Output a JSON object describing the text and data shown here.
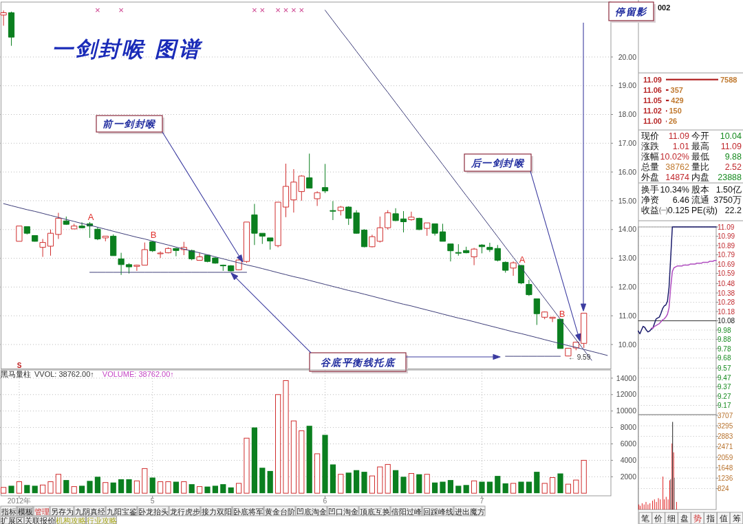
{
  "chart_data": [
    {
      "type": "candlestick",
      "title": "一剑封喉 图谱",
      "categories": [
        null,
        null,
        null,
        null,
        null,
        null,
        null,
        null,
        null,
        null,
        null,
        null,
        null,
        null,
        null,
        null,
        null,
        null,
        null,
        null,
        null,
        null,
        null,
        null,
        null,
        null,
        null,
        null,
        null,
        null,
        null,
        null,
        null,
        null,
        null,
        null,
        null,
        null,
        null,
        null,
        null,
        null,
        null,
        null,
        null,
        null,
        null,
        null,
        null,
        null,
        null,
        null,
        null,
        null,
        null,
        null,
        null,
        null,
        null,
        null,
        null,
        null,
        null,
        null,
        null,
        null,
        null,
        null,
        null,
        null,
        null,
        null,
        null,
        null,
        null,
        null,
        null,
        null
      ],
      "ohlc": [
        [
          21.46,
          21.62,
          21.09,
          21.54
        ],
        [
          21.54,
          21.58,
          20.39,
          20.69
        ],
        [
          13.59,
          14.12,
          13.59,
          14.12
        ],
        [
          14.1,
          14.1,
          13.83,
          13.87
        ],
        [
          13.79,
          13.79,
          13.58,
          13.59
        ],
        [
          13.38,
          13.67,
          13.05,
          13.55
        ],
        [
          13.42,
          14.0,
          13.09,
          13.87
        ],
        [
          13.83,
          14.58,
          13.67,
          14.39
        ],
        [
          14.3,
          14.45,
          14.16,
          14.18
        ],
        [
          14.02,
          14.2,
          14.02,
          14.12
        ],
        [
          14.12,
          14.25,
          14.04,
          14.06
        ],
        [
          14.2,
          14.26,
          13.71,
          14.12
        ],
        [
          14.01,
          14.08,
          13.63,
          13.67
        ],
        [
          13.71,
          13.77,
          13.59,
          13.77
        ],
        [
          13.77,
          13.83,
          13.09,
          13.09
        ],
        [
          12.98,
          13.19,
          12.42,
          12.78
        ],
        [
          12.78,
          12.83,
          12.47,
          12.7
        ],
        [
          12.72,
          12.78,
          12.56,
          12.76
        ],
        [
          12.76,
          13.55,
          12.76,
          13.3
        ],
        [
          13.57,
          13.6,
          13.22,
          13.26
        ],
        [
          13.17,
          13.24,
          13.01,
          13.18
        ],
        [
          13.19,
          13.38,
          13.17,
          13.34
        ],
        [
          13.34,
          13.36,
          13.07,
          13.27
        ],
        [
          13.3,
          13.57,
          13.11,
          13.38
        ],
        [
          13.27,
          13.3,
          12.93,
          12.98
        ],
        [
          12.93,
          13.19,
          12.93,
          13.05
        ],
        [
          13.11,
          13.13,
          12.86,
          12.89
        ],
        [
          13.01,
          13.03,
          12.81,
          12.83
        ],
        [
          12.76,
          12.78,
          12.56,
          12.75
        ],
        [
          12.74,
          12.76,
          12.54,
          12.56
        ],
        [
          12.6,
          12.97,
          12.58,
          12.94
        ],
        [
          12.89,
          14.26,
          12.84,
          14.26
        ],
        [
          14.51,
          14.89,
          13.46,
          13.87
        ],
        [
          13.87,
          13.87,
          13.5,
          13.77
        ],
        [
          13.71,
          13.71,
          13.3,
          13.6
        ],
        [
          13.44,
          14.95,
          13.38,
          14.95
        ],
        [
          14.78,
          16.29,
          14.43,
          15.5
        ],
        [
          15.03,
          16.1,
          14.59,
          15.65
        ],
        [
          15.32,
          15.89,
          15.0,
          15.86
        ],
        [
          15.8,
          16.64,
          15.44,
          15.44
        ],
        [
          15.07,
          15.33,
          14.82,
          15.28
        ],
        [
          15.46,
          16.28,
          15.27,
          15.34
        ],
        [
          14.66,
          14.99,
          14.33,
          14.65
        ],
        [
          14.66,
          14.82,
          14.49,
          14.78
        ],
        [
          14.78,
          14.81,
          14.16,
          14.39
        ],
        [
          14.58,
          14.67,
          13.85,
          13.87
        ],
        [
          13.98,
          14.01,
          13.38,
          13.4
        ],
        [
          13.4,
          13.82,
          13.38,
          13.75
        ],
        [
          13.59,
          14.45,
          13.55,
          14.06
        ],
        [
          14.06,
          14.67,
          14.0,
          14.58
        ],
        [
          14.55,
          14.74,
          14.29,
          14.31
        ],
        [
          14.37,
          14.64,
          13.9,
          14.27
        ],
        [
          14.34,
          14.62,
          14.31,
          14.43
        ],
        [
          14.39,
          14.41,
          13.98,
          14.0
        ],
        [
          14.04,
          14.23,
          13.78,
          14.23
        ],
        [
          14.2,
          14.2,
          13.79,
          13.87
        ],
        [
          13.92,
          14.2,
          13.59,
          13.59
        ],
        [
          13.5,
          13.5,
          12.89,
          13.26
        ],
        [
          13.2,
          13.49,
          13.09,
          13.19
        ],
        [
          13.27,
          13.4,
          13.17,
          13.19
        ],
        [
          13.05,
          13.36,
          12.76,
          13.32
        ],
        [
          13.46,
          13.49,
          13.17,
          13.4
        ],
        [
          13.38,
          13.54,
          13.22,
          13.3
        ],
        [
          13.34,
          13.46,
          12.89,
          12.93
        ],
        [
          12.86,
          12.89,
          12.5,
          12.58
        ],
        [
          12.66,
          12.89,
          12.39,
          12.84
        ],
        [
          12.75,
          12.76,
          12.1,
          12.14
        ],
        [
          12.09,
          12.25,
          11.69,
          11.73
        ],
        [
          11.59,
          11.59,
          10.68,
          11.07
        ],
        [
          10.95,
          11.15,
          10.88,
          11.13
        ],
        [
          10.91,
          10.96,
          10.78,
          10.95
        ],
        [
          10.88,
          10.88,
          9.86,
          9.86
        ],
        [
          9.6,
          9.88,
          9.59,
          9.87
        ],
        [
          9.88,
          10.1,
          9.8,
          10.08
        ],
        [
          10.04,
          11.09,
          9.88,
          11.09
        ],
        null,
        null,
        null
      ],
      "colors": [
        "#d02c2c",
        "#0b7f1f",
        "#d02c2c",
        "#0b7f1f",
        "#0b7f1f",
        "#d02c2c",
        "#d02c2c",
        "#d02c2c",
        "#0b7f1f",
        "#d02c2c",
        "#0b7f1f",
        "#0b7f1f",
        "#0b7f1f",
        "#d02c2c",
        "#0b7f1f",
        "#0b7f1f",
        "#0b7f1f",
        "#d02c2c",
        "#d02c2c",
        "#0b7f1f",
        "#d02c2c",
        "#d02c2c",
        "#0b7f1f",
        "#d02c2c",
        "#0b7f1f",
        "#d02c2c",
        "#0b7f1f",
        "#0b7f1f",
        "#0b7f1f",
        "#0b7f1f",
        "#d02c2c",
        "#d02c2c",
        "#0b7f1f",
        "#0b7f1f",
        "#0b7f1f",
        "#d02c2c",
        "#d02c2c",
        "#d02c2c",
        "#d02c2c",
        "#0b7f1f",
        "#d02c2c",
        "#0b7f1f",
        "#0b7f1f",
        "#d02c2c",
        "#0b7f1f",
        "#0b7f1f",
        "#0b7f1f",
        "#d02c2c",
        "#d02c2c",
        "#d02c2c",
        "#0b7f1f",
        "#0b7f1f",
        "#d02c2c",
        "#0b7f1f",
        "#d02c2c",
        "#0b7f1f",
        "#0b7f1f",
        "#0b7f1f",
        "#0b7f1f",
        "#0b7f1f",
        "#d02c2c",
        "#0b7f1f",
        "#0b7f1f",
        "#0b7f1f",
        "#0b7f1f",
        "#d02c2c",
        "#0b7f1f",
        "#0b7f1f",
        "#0b7f1f",
        "#d02c2c",
        "#d02c2c",
        "#0b7f1f",
        "#d02c2c",
        "#d02c2c",
        "#d02c2c",
        null,
        null,
        null
      ],
      "series": [
        {
          "type": "scatter",
          "color": "#d2559a",
          "marker": "cross",
          "values": [
            null,
            null,
            null,
            null,
            null,
            null,
            null,
            null,
            null,
            null,
            null,
            null,
            21.63,
            null,
            null,
            21.63,
            null,
            null,
            null,
            null,
            null,
            null,
            null,
            null,
            null,
            null,
            null,
            null,
            null,
            null,
            null,
            null,
            21.63,
            21.63,
            null,
            21.63,
            21.63,
            21.63,
            21.63,
            null,
            null,
            null,
            null,
            null,
            null,
            null,
            null,
            null,
            null,
            null,
            null,
            null,
            null,
            null,
            null,
            null,
            null,
            null,
            null,
            null,
            null,
            null,
            null,
            null,
            null,
            null,
            null,
            null,
            null,
            null,
            null,
            null,
            null,
            null,
            null,
            null,
            null,
            null
          ]
        },
        {
          "type": "line",
          "color": "#3c3c78",
          "values": [
            14.9,
            14.83,
            14.76,
            14.69,
            14.63,
            14.56,
            14.49,
            14.42,
            14.35,
            14.28,
            14.21,
            14.15,
            14.08,
            14.01,
            13.94,
            13.87,
            13.8,
            13.73,
            13.67,
            13.6,
            13.53,
            13.46,
            13.39,
            13.32,
            13.25,
            13.19,
            13.12,
            13.05,
            12.98,
            12.91,
            12.84,
            12.77,
            12.71,
            12.64,
            12.57,
            12.5,
            12.43,
            12.36,
            12.3,
            12.23,
            12.16,
            12.09,
            12.02,
            11.95,
            11.88,
            11.82,
            11.75,
            11.68,
            11.61,
            11.54,
            11.47,
            11.4,
            11.34,
            11.27,
            11.2,
            11.13,
            11.06,
            10.99,
            10.92,
            10.86,
            10.79,
            10.72,
            10.65,
            10.58,
            10.51,
            10.44,
            10.38,
            10.31,
            10.24,
            10.17,
            10.1,
            10.03,
            9.96,
            9.9,
            9.83,
            9.76,
            9.69,
            9.62
          ]
        },
        {
          "type": "line",
          "color": "#3c3c78",
          "values": [
            null,
            null,
            null,
            null,
            null,
            null,
            null,
            null,
            null,
            null,
            null,
            null,
            null,
            null,
            null,
            null,
            null,
            null,
            null,
            null,
            null,
            null,
            null,
            null,
            null,
            null,
            null,
            null,
            null,
            null,
            null,
            null,
            null,
            null,
            null,
            null,
            null,
            null,
            null,
            null,
            null,
            21.63,
            21.27,
            20.91,
            20.56,
            20.2,
            19.84,
            19.48,
            19.12,
            18.77,
            18.41,
            18.05,
            17.69,
            17.33,
            16.97,
            16.62,
            16.26,
            15.9,
            15.54,
            15.18,
            14.83,
            14.47,
            14.11,
            13.75,
            13.39,
            13.03,
            12.68,
            12.32,
            11.96,
            11.6,
            11.24,
            10.88,
            10.53,
            10.17,
            9.81,
            9.45,
            null,
            null
          ]
        },
        {
          "type": "line",
          "color": "#3c3c78",
          "values": [
            null,
            null,
            null,
            null,
            null,
            null,
            null,
            null,
            null,
            null,
            null,
            12.51,
            12.51,
            12.51,
            12.51,
            12.51,
            12.51,
            12.51,
            12.51,
            12.51,
            12.51,
            12.51,
            12.51,
            12.51,
            12.51,
            12.51,
            12.51,
            12.51,
            12.51,
            12.51,
            12.51,
            12.51,
            null,
            null,
            null,
            null,
            null,
            null,
            null,
            null,
            null,
            null,
            null,
            null,
            null,
            null,
            null,
            null,
            null,
            null,
            null,
            null,
            null,
            null,
            null,
            null,
            null,
            null,
            null,
            null,
            null,
            null,
            null,
            null,
            null,
            null,
            null,
            null,
            null,
            null,
            null,
            null,
            null,
            null,
            null,
            null,
            null,
            null
          ]
        },
        {
          "type": "line",
          "color": "#3c3c78",
          "values": [
            null,
            null,
            null,
            null,
            null,
            null,
            null,
            null,
            null,
            null,
            null,
            null,
            null,
            null,
            null,
            null,
            null,
            null,
            null,
            null,
            null,
            null,
            null,
            null,
            null,
            null,
            null,
            null,
            null,
            null,
            null,
            null,
            null,
            null,
            null,
            null,
            null,
            null,
            null,
            null,
            null,
            null,
            null,
            null,
            null,
            null,
            null,
            null,
            null,
            null,
            null,
            null,
            null,
            null,
            null,
            null,
            null,
            null,
            null,
            null,
            null,
            null,
            null,
            null,
            9.59,
            9.59,
            9.59,
            9.59,
            9.59,
            9.59,
            9.59,
            9.59,
            null,
            null,
            null,
            null,
            null,
            null
          ]
        }
      ],
      "annotations": [
        "前一剑封喉",
        "谷底平衡线托底",
        "后一剑封喉",
        "停留影",
        "A",
        "B",
        "A",
        "B",
        "← 9.59",
        "S"
      ],
      "ylim": [
        9.15,
        21.9
      ],
      "yticks": [
        {
          "value": 10,
          "label": "10.00"
        },
        {
          "value": 11,
          "label": "11.00"
        },
        {
          "value": 12,
          "label": "12.00"
        },
        {
          "value": 13,
          "label": "13.00"
        },
        {
          "value": 14,
          "label": "14.00"
        },
        {
          "value": 15,
          "label": "15.00"
        },
        {
          "value": 16,
          "label": "16.00"
        },
        {
          "value": 17,
          "label": "17.00"
        },
        {
          "value": 18,
          "label": "18.00"
        },
        {
          "value": 19,
          "label": "19.00"
        },
        {
          "value": 20,
          "label": "20.00"
        }
      ],
      "grid": "y"
    },
    {
      "type": "bar",
      "title": "黑马量柱",
      "annotations": [
        "VVOL: 38762.00↑",
        "VOLUME: 38762.00↑"
      ],
      "categories": [
        null,
        null,
        "2012年",
        null,
        null,
        null,
        null,
        null,
        null,
        null,
        null,
        null,
        null,
        null,
        null,
        null,
        null,
        null,
        null,
        "5",
        null,
        null,
        null,
        null,
        null,
        null,
        null,
        null,
        null,
        null,
        null,
        null,
        null,
        null,
        null,
        null,
        null,
        null,
        null,
        null,
        null,
        "6",
        null,
        null,
        null,
        null,
        null,
        null,
        null,
        null,
        null,
        null,
        null,
        null,
        null,
        null,
        null,
        null,
        null,
        null,
        null,
        "7",
        null,
        null,
        null,
        null,
        null,
        null,
        null,
        null,
        null,
        null,
        null,
        null,
        null,
        null,
        null,
        null
      ],
      "values": [
        700,
        900,
        1400,
        1000,
        900,
        1000,
        1400,
        2300,
        1600,
        800,
        900,
        1500,
        2000,
        1300,
        1300,
        1700,
        1700,
        1500,
        3000,
        1900,
        1400,
        1400,
        1400,
        1400,
        1100,
        800,
        800,
        900,
        1100,
        700,
        1200,
        6700,
        8000,
        3100,
        2700,
        12000,
        13700,
        8800,
        7600,
        8200,
        4800,
        7100,
        3500,
        2300,
        2500,
        2800,
        2600,
        2100,
        3200,
        3500,
        2800,
        2000,
        2400,
        2300,
        2300,
        1300,
        1400,
        1600,
        900,
        1000,
        1500,
        1400,
        1400,
        2100,
        1200,
        1200,
        1400,
        1400,
        2600,
        1200,
        1900,
        2400,
        1100,
        1600,
        4000,
        null,
        null,
        null
      ],
      "colors": [
        "#d02c2c",
        "#0b7f1f",
        "#d02c2c",
        "#0b7f1f",
        "#0b7f1f",
        "#d02c2c",
        "#d02c2c",
        "#d02c2c",
        "#0b7f1f",
        "#d02c2c",
        "#0b7f1f",
        "#0b7f1f",
        "#0b7f1f",
        "#d02c2c",
        "#0b7f1f",
        "#0b7f1f",
        "#0b7f1f",
        "#d02c2c",
        "#d02c2c",
        "#0b7f1f",
        "#d02c2c",
        "#d02c2c",
        "#0b7f1f",
        "#d02c2c",
        "#0b7f1f",
        "#d02c2c",
        "#0b7f1f",
        "#0b7f1f",
        "#0b7f1f",
        "#0b7f1f",
        "#d02c2c",
        "#d02c2c",
        "#0b7f1f",
        "#0b7f1f",
        "#0b7f1f",
        "#d02c2c",
        "#d02c2c",
        "#d02c2c",
        "#d02c2c",
        "#0b7f1f",
        "#d02c2c",
        "#0b7f1f",
        "#0b7f1f",
        "#d02c2c",
        "#0b7f1f",
        "#0b7f1f",
        "#0b7f1f",
        "#d02c2c",
        "#d02c2c",
        "#d02c2c",
        "#0b7f1f",
        "#0b7f1f",
        "#d02c2c",
        "#0b7f1f",
        "#d02c2c",
        "#0b7f1f",
        "#0b7f1f",
        "#0b7f1f",
        "#0b7f1f",
        "#0b7f1f",
        "#d02c2c",
        "#0b7f1f",
        "#0b7f1f",
        "#0b7f1f",
        "#0b7f1f",
        "#d02c2c",
        "#0b7f1f",
        "#0b7f1f",
        "#0b7f1f",
        "#d02c2c",
        "#d02c2c",
        "#0b7f1f",
        "#d02c2c",
        "#d02c2c",
        "#d02c2c",
        null,
        null,
        null
      ],
      "ylim": [
        0,
        15000
      ],
      "yticks": [
        2000,
        4000,
        6000,
        8000,
        10000,
        12000,
        14000
      ],
      "grid": true
    },
    {
      "type": "bar",
      "orientation": "horizontal",
      "categories": [
        "11.09",
        "11.06",
        "11.05",
        "11.02",
        "11.00"
      ],
      "values": [
        7588,
        357,
        429,
        150,
        26
      ],
      "color": "#b01e1e",
      "data_labels": true
    },
    {
      "type": "other",
      "title": "002",
      "annotations": [
        "现价",
        "11.09",
        "今开",
        "10.04",
        "涨跌",
        "1.01",
        "最高",
        "11.09",
        "涨幅",
        "10.02%",
        "最低",
        "9.88",
        "总量",
        "38762",
        "量比",
        "2.52",
        "外盘",
        "14874",
        "内盘",
        "23888",
        "换手",
        "10.34%",
        "股本",
        "1.50亿",
        "净资",
        "6.46",
        "流通",
        "3750万",
        "收益㈠",
        "0.125",
        "PE(动)",
        "22.2"
      ],
      "colors": [
        "#111111",
        "#c0282d",
        "#111111",
        "#158a1e",
        "#111111",
        "#c0282d",
        "#111111",
        "#c0282d",
        "#111111",
        "#c0282d",
        "#111111",
        "#158a1e",
        "#111111",
        "#c07a30",
        "#111111",
        "#c0282d",
        "#111111",
        "#c0282d",
        "#111111",
        "#158a1e",
        "#111111",
        "#111111",
        "#111111",
        "#111111",
        "#111111",
        "#111111",
        "#111111",
        "#111111",
        "#111111",
        "#111111",
        "#111111",
        "#111111"
      ]
    },
    {
      "type": "line",
      "categories": [
        null,
        null,
        null,
        null,
        null,
        null,
        null,
        null,
        null,
        null,
        null,
        null,
        null,
        null,
        null,
        null,
        null,
        null,
        null,
        null,
        null,
        null,
        null,
        null,
        null,
        null,
        null,
        null,
        null,
        null,
        null,
        null,
        null,
        null,
        null,
        null,
        null,
        null,
        null,
        null,
        null,
        null,
        null,
        null,
        null,
        null,
        null,
        null,
        null
      ],
      "series": [
        {
          "color": "#1c1c6c",
          "values": [
            9.97,
            9.94,
            9.98,
            10.02,
            10.01,
            9.98,
            9.96,
            9.97,
            9.99,
            10.0,
            10.05,
            10.1,
            10.11,
            10.12,
            10.16,
            10.21,
            10.24,
            10.25,
            10.29,
            10.44,
            10.76,
            11.09,
            11.09,
            11.09,
            11.09,
            11.09,
            11.09,
            11.09,
            11.09,
            11.09,
            11.09,
            11.09,
            11.09,
            11.09,
            11.09,
            11.09,
            11.09,
            11.09,
            11.09,
            11.09,
            11.09,
            11.09,
            11.09,
            11.09,
            11.09,
            11.09,
            11.09,
            11.09,
            11.09
          ]
        },
        {
          "color": "#b04cc0",
          "values": [
            null,
            null,
            null,
            null,
            null,
            null,
            null,
            null,
            10.0,
            10.0,
            10.02,
            10.03,
            10.04,
            10.05,
            10.07,
            10.09,
            10.1,
            10.12,
            10.15,
            10.22,
            10.44,
            10.61,
            10.65,
            10.66,
            10.67,
            10.67,
            10.67,
            10.67,
            10.68,
            10.68,
            10.68,
            10.68,
            10.69,
            10.69,
            10.69,
            10.69,
            10.7,
            10.7,
            10.7,
            10.7,
            10.71,
            10.71,
            10.71,
            10.71,
            10.72,
            10.72,
            10.72,
            10.73,
            10.73
          ]
        }
      ],
      "ylim": [
        9.07,
        11.09
      ],
      "yticks": [
        11.09,
        10.99,
        10.89,
        10.79,
        10.69,
        10.59,
        10.48,
        10.38,
        10.28,
        10.18,
        10.08,
        9.98,
        9.88,
        9.78,
        9.68,
        9.57,
        9.47,
        9.37,
        9.27,
        9.17
      ],
      "ref_lines": [
        {
          "axis": "y",
          "value": 10.08
        }
      ],
      "grid": "y"
    },
    {
      "type": "bar",
      "categories": [
        null,
        null,
        null,
        null,
        null,
        null,
        null,
        null,
        null,
        null,
        null,
        null,
        null,
        null,
        null,
        null,
        null,
        null,
        null,
        null,
        null,
        null,
        null,
        null,
        null,
        null,
        null,
        null,
        null,
        null,
        null,
        null,
        null,
        null,
        null,
        null,
        null,
        null,
        null,
        null,
        null,
        null,
        null,
        null,
        null,
        null,
        null,
        null,
        null,
        null,
        null,
        null,
        null,
        null,
        null,
        null,
        null,
        null,
        null,
        null,
        null,
        null,
        null,
        null,
        null,
        null,
        null,
        null,
        null,
        null,
        null,
        null,
        null,
        null,
        null,
        null,
        null,
        null,
        null,
        null,
        null,
        null,
        null,
        null,
        null,
        null,
        null,
        null,
        null,
        null,
        null,
        null,
        null,
        null,
        null,
        null,
        null,
        null,
        null,
        null,
        null,
        null,
        null,
        null,
        null,
        null,
        null,
        null,
        null,
        null,
        null,
        null,
        null,
        null,
        null,
        null,
        null,
        null,
        null,
        null,
        null,
        null,
        null,
        null,
        null,
        null,
        null,
        null,
        null,
        null,
        null,
        null,
        null,
        null,
        null,
        null,
        null,
        null,
        null,
        null,
        null,
        null,
        null,
        null,
        null,
        null,
        null,
        null,
        null,
        null,
        null,
        null,
        null,
        null,
        null,
        null,
        null,
        null,
        null,
        null,
        null,
        null,
        null,
        null,
        null,
        null,
        null,
        null,
        null,
        null,
        null,
        null,
        null,
        null,
        null,
        null,
        null,
        null,
        null,
        null,
        null,
        null,
        null,
        null,
        null,
        null,
        null,
        null,
        null,
        null,
        null,
        null,
        null,
        null,
        null,
        null,
        null,
        null,
        null,
        null,
        null,
        null,
        null,
        null,
        null,
        null,
        null,
        null,
        null,
        null,
        null,
        null,
        null,
        null,
        null,
        null,
        null,
        null,
        null,
        null,
        null,
        null,
        null,
        null,
        null,
        null,
        null,
        null,
        null,
        null,
        null,
        null,
        null,
        null,
        null,
        null,
        null,
        null,
        null,
        null,
        null
      ],
      "values": [
        null,
        null,
        200,
        null,
        null,
        null,
        150,
        null,
        null,
        null,
        null,
        null,
        250,
        null,
        null,
        null,
        null,
        null,
        200,
        null,
        null,
        null,
        null,
        null,
        300,
        null,
        null,
        null,
        null,
        null,
        200,
        null,
        null,
        null,
        null,
        null,
        250,
        null,
        null,
        null,
        null,
        null,
        null,
        null,
        350,
        null,
        null,
        null,
        null,
        null,
        400,
        null,
        null,
        null,
        null,
        null,
        300,
        null,
        null,
        null,
        null,
        null,
        450,
        null,
        null,
        null,
        null,
        null,
        400,
        null,
        null,
        null,
        null,
        null,
        null,
        null,
        1300,
        null,
        null,
        null,
        400,
        null,
        null,
        null,
        null,
        null,
        500,
        null,
        null,
        null,
        null,
        null,
        400,
        null,
        null,
        null,
        null,
        1150,
        null,
        null,
        1200,
        null,
        null,
        null,
        2600,
        null,
        3450,
        null,
        null,
        2250,
        null,
        1250,
        null,
        null,
        null,
        null,
        null,
        null,
        300,
        null,
        null,
        null,
        null,
        null,
        null,
        null,
        null,
        null,
        null,
        null,
        null,
        null,
        null,
        null,
        null,
        null,
        null,
        null,
        null,
        null,
        null,
        null,
        null,
        null,
        null,
        null,
        null,
        null,
        null,
        null,
        null,
        null,
        null,
        null,
        null,
        null,
        null,
        null,
        null,
        null,
        null,
        null,
        null,
        null,
        null,
        null,
        null,
        null,
        null,
        null,
        null,
        null,
        null,
        null,
        null,
        null,
        null,
        null,
        null,
        null,
        null,
        null,
        null,
        null,
        null,
        null,
        null,
        null,
        null,
        null,
        null,
        null,
        null,
        null,
        null,
        null,
        null,
        null,
        null,
        null,
        null,
        null,
        null,
        null,
        null,
        null,
        null,
        null,
        null,
        null,
        null,
        null,
        null,
        null,
        null,
        null,
        null,
        null,
        null,
        null,
        null,
        null,
        null,
        null,
        null,
        null,
        null,
        null,
        null,
        null,
        null,
        null,
        null,
        null,
        null,
        null,
        null,
        null,
        null,
        null,
        null
      ],
      "colors": [
        null,
        null,
        "#e02424",
        null,
        null,
        null,
        "#e02424",
        null,
        null,
        null,
        null,
        null,
        "#e02424",
        null,
        null,
        null,
        null,
        null,
        "#e02424",
        null,
        null,
        null,
        null,
        null,
        "#e02424",
        null,
        null,
        null,
        null,
        null,
        "#e02424",
        null,
        null,
        null,
        null,
        null,
        "#e02424",
        null,
        null,
        null,
        null,
        null,
        null,
        null,
        "#e02424",
        null,
        null,
        null,
        null,
        null,
        "#e02424",
        null,
        null,
        null,
        null,
        null,
        "#e02424",
        null,
        null,
        null,
        null,
        null,
        "#e02424",
        null,
        null,
        null,
        null,
        null,
        "#e02424",
        null,
        null,
        null,
        null,
        null,
        null,
        null,
        "#e02424",
        null,
        null,
        null,
        "#e02424",
        null,
        null,
        null,
        null,
        null,
        "#e02424",
        null,
        null,
        null,
        null,
        null,
        "#e02424",
        null,
        null,
        null,
        null,
        "#e02424",
        null,
        null,
        "#606060",
        null,
        null,
        null,
        "#e02424",
        null,
        "#202020",
        null,
        null,
        "#e02424",
        null,
        "#707070",
        null,
        null,
        null,
        null,
        null,
        null,
        "#e02424",
        null,
        null,
        null,
        null,
        null,
        null,
        null,
        null,
        null,
        null,
        null,
        null,
        null,
        null,
        null,
        null,
        null,
        null,
        null,
        null,
        null,
        null,
        null,
        null,
        null,
        null,
        null,
        null,
        null,
        null,
        null,
        null,
        null,
        null,
        null,
        null,
        null,
        null,
        null,
        null,
        null,
        null,
        null,
        null,
        null,
        null,
        null,
        null,
        null,
        null,
        null,
        null,
        null,
        null,
        null,
        null,
        null,
        null,
        null,
        null,
        null,
        null,
        null,
        null,
        null,
        null,
        null,
        null,
        null,
        null,
        null,
        null,
        null,
        null,
        null,
        null,
        null,
        null,
        null,
        null,
        null,
        null,
        null,
        null,
        null,
        null,
        null,
        null,
        null,
        null,
        null,
        null,
        null,
        null,
        null,
        null,
        null,
        null,
        null,
        null,
        null,
        null,
        null,
        null,
        null,
        null,
        null,
        null,
        null,
        null,
        null,
        null,
        null,
        null,
        null,
        null,
        null,
        null,
        null,
        null,
        null,
        null
      ],
      "ylim": [
        0,
        3707
      ],
      "yticks": [
        824,
        1236,
        1648,
        2059,
        2471,
        2883,
        3295,
        3707
      ],
      "grid": "y"
    },
    {
      "type": "other",
      "annotations": [
        "指标",
        "模板",
        "管理",
        "另存为",
        "九阴真经",
        "九阳宝鉴",
        "卧龙抬头",
        "龙行虎步",
        "接力双阳",
        "卧底将军",
        "黄金台阶",
        "凹底淘金",
        "凹口淘金",
        "顶底互换",
        "倍阳过峰",
        "回踩峰线",
        "进出魔方",
        "扩展区",
        "关联报价",
        "机构攻略",
        "行业攻略",
        "笔",
        "价",
        "细",
        "盘",
        "势",
        "指",
        "值",
        "筹"
      ],
      "colors": [
        "#222222",
        "#222222",
        "#d03030",
        "#222222",
        "#222222",
        "#222222",
        "#222222",
        "#222222",
        "#222222",
        "#222222",
        "#222222",
        "#222222",
        "#222222",
        "#222222",
        "#222222",
        "#222222",
        "#222222",
        "#222222",
        "#222222",
        "#a8a820",
        "#a8a820",
        "#222222",
        "#222222",
        "#222222",
        "#222222",
        "#d03030",
        "#222222",
        "#222222",
        "#222222"
      ]
    }
  ]
}
